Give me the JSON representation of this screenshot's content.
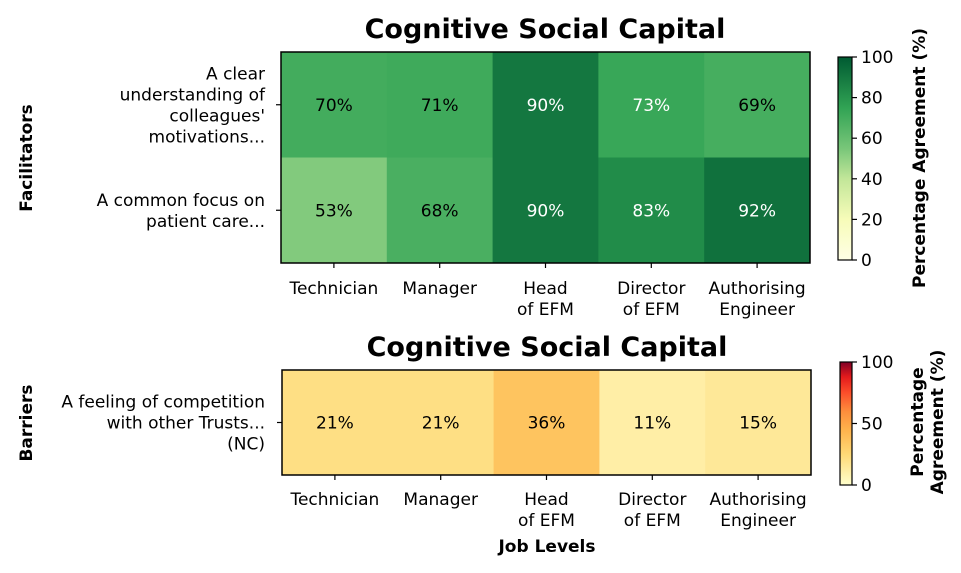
{
  "chart_data": [
    {
      "type": "heatmap",
      "title": "Cognitive Social Capital",
      "group_label": "Facilitators",
      "rows": [
        "A clear understanding of colleagues' motivations...",
        "A common focus on patient care..."
      ],
      "row_lines": [
        [
          "A clear",
          "understanding of",
          "colleagues'",
          "motivations..."
        ],
        [
          "A common focus on",
          "patient care..."
        ]
      ],
      "columns": [
        "Technician",
        "Manager",
        "Head of EFM",
        "Director of EFM",
        "Authorising Engineer"
      ],
      "column_lines": [
        [
          "Technician"
        ],
        [
          "Manager"
        ],
        [
          "Head",
          "of EFM"
        ],
        [
          "Director",
          "of EFM"
        ],
        [
          "Authorising",
          "Engineer"
        ]
      ],
      "values": [
        [
          70,
          71,
          90,
          73,
          69
        ],
        [
          53,
          68,
          90,
          83,
          92
        ]
      ],
      "value_labels": [
        [
          "70%",
          "71%",
          "90%",
          "73%",
          "69%"
        ],
        [
          "53%",
          "68%",
          "90%",
          "83%",
          "92%"
        ]
      ],
      "colormap": "Greens-to-dark (YlGn)",
      "colorbar": {
        "label": "Percentage Agreement (%)",
        "range": [
          0,
          100
        ],
        "ticks": [
          "0",
          "20",
          "40",
          "60",
          "80",
          "100"
        ]
      }
    },
    {
      "type": "heatmap",
      "title": "Cognitive Social Capital",
      "group_label": "Barriers",
      "rows": [
        "A feeling of competition with other Trusts... (NC)"
      ],
      "row_lines": [
        [
          "A feeling of competition",
          "with other Trusts...",
          "(NC)"
        ]
      ],
      "columns": [
        "Technician",
        "Manager",
        "Head of EFM",
        "Director of EFM",
        "Authorising Engineer"
      ],
      "column_lines": [
        [
          "Technician"
        ],
        [
          "Manager"
        ],
        [
          "Head",
          "of EFM"
        ],
        [
          "Director",
          "of EFM"
        ],
        [
          "Authorising",
          "Engineer"
        ]
      ],
      "values": [
        [
          21,
          21,
          36,
          11,
          15
        ]
      ],
      "value_labels": [
        [
          "21%",
          "21%",
          "36%",
          "11%",
          "15%"
        ]
      ],
      "xlabel": "Job Levels",
      "colormap": "Yellow-Orange-Red (YlOrRd)",
      "colorbar": {
        "label_lines": [
          "Percentage",
          "Agreement (%)"
        ],
        "range": [
          0,
          100
        ],
        "ticks": [
          "0",
          "50",
          "100"
        ]
      }
    }
  ]
}
